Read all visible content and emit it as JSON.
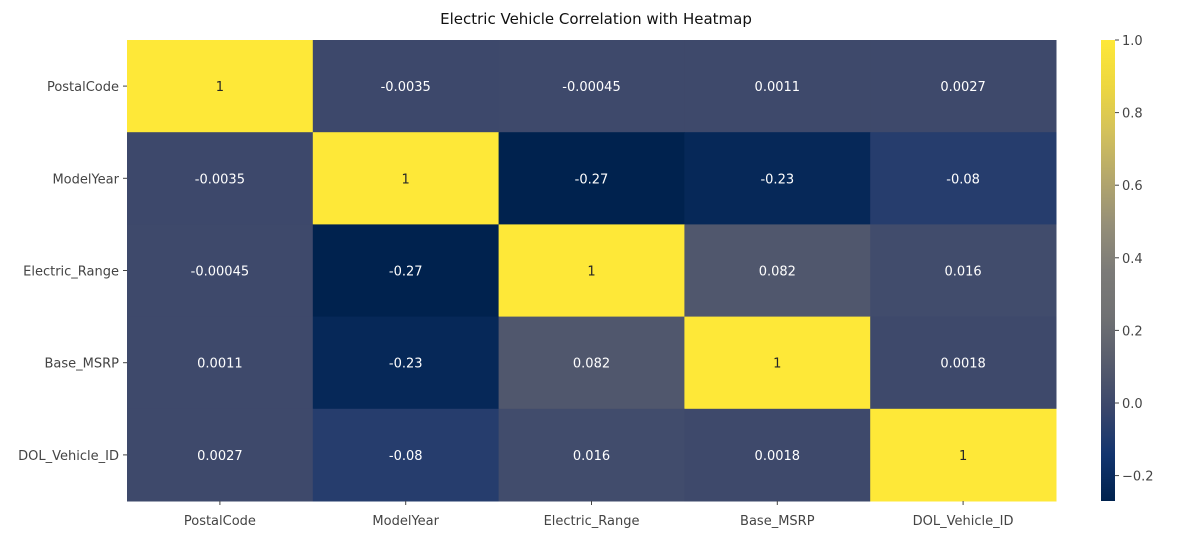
{
  "chart_data": {
    "type": "heatmap",
    "title": "Electric Vehicle Correlation with Heatmap",
    "xlabel": "",
    "ylabel": "",
    "x_categories": [
      "PostalCode",
      "ModelYear",
      "Electric_Range",
      "Base_MSRP",
      "DOL_Vehicle_ID"
    ],
    "y_categories": [
      "PostalCode",
      "ModelYear",
      "Electric_Range",
      "Base_MSRP",
      "DOL_Vehicle_ID"
    ],
    "values": [
      [
        1,
        -0.0035,
        -0.00045,
        0.0011,
        0.0027
      ],
      [
        -0.0035,
        1,
        -0.27,
        -0.23,
        -0.08
      ],
      [
        -0.00045,
        -0.27,
        1,
        0.082,
        0.016
      ],
      [
        0.0011,
        -0.23,
        0.082,
        1,
        0.0018
      ],
      [
        0.0027,
        -0.08,
        0.016,
        0.0018,
        1
      ]
    ],
    "annotations": [
      [
        "1",
        "-0.0035",
        "-0.00045",
        "0.0011",
        "0.0027"
      ],
      [
        "-0.0035",
        "1",
        "-0.27",
        "-0.23",
        "-0.08"
      ],
      [
        "-0.00045",
        "-0.27",
        "1",
        "0.082",
        "0.016"
      ],
      [
        "0.0011",
        "-0.23",
        "0.082",
        "1",
        "0.0018"
      ],
      [
        "0.0027",
        "-0.08",
        "0.016",
        "0.0018",
        "1"
      ]
    ],
    "colormap": "cividis",
    "colorbar": {
      "range": [
        -0.27,
        1.0
      ],
      "ticks": [
        -0.2,
        0.0,
        0.2,
        0.4,
        0.6,
        0.8,
        1.0
      ],
      "tick_labels": [
        "−0.2",
        "0.0",
        "0.2",
        "0.4",
        "0.6",
        "0.8",
        "1.0"
      ]
    },
    "grid": false,
    "colors": {
      "low": "#00224e",
      "high": "#fee838"
    }
  }
}
